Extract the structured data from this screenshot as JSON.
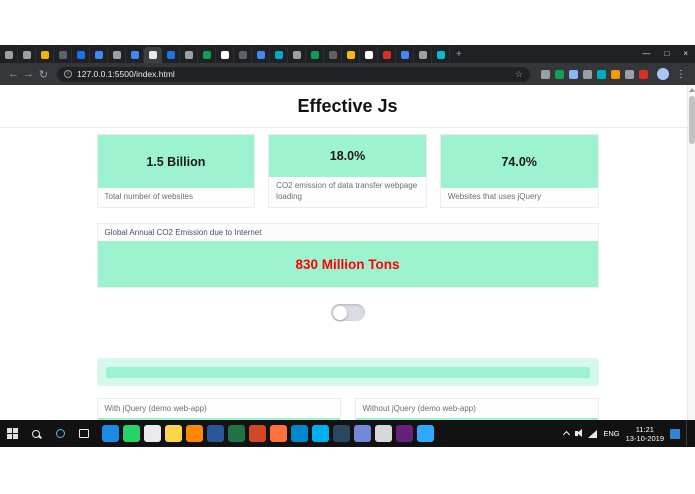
{
  "browser": {
    "tabs": [
      {
        "color": "#9aa0a6"
      },
      {
        "color": "#9aa0a6"
      },
      {
        "color": "#f4b400"
      },
      {
        "color": "#5f6368"
      },
      {
        "color": "#1a73e8"
      },
      {
        "color": "#4285f4"
      },
      {
        "color": "#9aa0a6"
      },
      {
        "color": "#4285f4"
      },
      {
        "color": "#e8eaed",
        "active": true
      },
      {
        "color": "#1a73e8"
      },
      {
        "color": "#9aa0a6"
      },
      {
        "color": "#0f9d58"
      },
      {
        "color": "#ffffff"
      },
      {
        "color": "#5f6368"
      },
      {
        "color": "#4285f4"
      },
      {
        "color": "#00acc1"
      },
      {
        "color": "#9aa0a6"
      },
      {
        "color": "#0f9d58"
      },
      {
        "color": "#5f6368"
      },
      {
        "color": "#fbbc05"
      },
      {
        "color": "#ffffff"
      },
      {
        "color": "#d93025"
      },
      {
        "color": "#4285f4"
      },
      {
        "color": "#9aa0a6"
      },
      {
        "color": "#00bcd4"
      }
    ],
    "new_tab_glyph": "+",
    "window_controls": {
      "minimize": "—",
      "maximize": "□",
      "close": "×"
    },
    "toolbar": {
      "back_glyph": "←",
      "forward_glyph": "→",
      "reload_glyph": "↻",
      "info_glyph": "i",
      "url": "127.0.0.1:5500/index.html",
      "star_glyph": "☆",
      "menu_glyph": "⋮",
      "extensions": [
        "#9aa0a6",
        "#0f9d58",
        "#8ab4f8",
        "#9aa0a6",
        "#00acc1",
        "#f29900",
        "#9aa0a6",
        "#d93025"
      ]
    }
  },
  "page": {
    "title": "Effective Js",
    "stats": [
      {
        "value": "1.5 Billion",
        "label": "Total number of websites"
      },
      {
        "value": "18.0%",
        "label": "CO2 emission of data transfer webpage loading"
      },
      {
        "value": "74.0%",
        "label": "Websites that uses jQuery"
      }
    ],
    "emission": {
      "label": "Global Annual CO2 Emission due to Internet",
      "value": "830 Million Tons"
    },
    "demos": [
      {
        "label": "With jQuery (demo web-app)"
      },
      {
        "label": "Without jQuery (demo web-app)"
      }
    ],
    "colors": {
      "mint": "#9df3d0",
      "mint_light": "#d4f8e9",
      "alert_red": "#ff0000"
    }
  },
  "taskbar": {
    "apps": [
      {
        "name": "edge",
        "color": "#1e88e5"
      },
      {
        "name": "whatsapp",
        "color": "#25d366"
      },
      {
        "name": "chrome",
        "color": "#e8eaed"
      },
      {
        "name": "file-explorer",
        "color": "#ffd54f"
      },
      {
        "name": "vlc",
        "color": "#ff8800"
      },
      {
        "name": "word",
        "color": "#2b579a"
      },
      {
        "name": "excel",
        "color": "#217346"
      },
      {
        "name": "powerpoint",
        "color": "#d24726"
      },
      {
        "name": "firefox",
        "color": "#ff7139"
      },
      {
        "name": "telegram",
        "color": "#0088cc"
      },
      {
        "name": "skype",
        "color": "#00aff0"
      },
      {
        "name": "steam",
        "color": "#2a475e"
      },
      {
        "name": "discord",
        "color": "#7289da"
      },
      {
        "name": "calculator",
        "color": "#d7d7d7"
      },
      {
        "name": "visual-studio",
        "color": "#68217a"
      },
      {
        "name": "photoshop",
        "color": "#31a8ff"
      }
    ],
    "tray": {
      "language": "ENG",
      "time": "11:21",
      "date": "13-10-2019"
    }
  }
}
